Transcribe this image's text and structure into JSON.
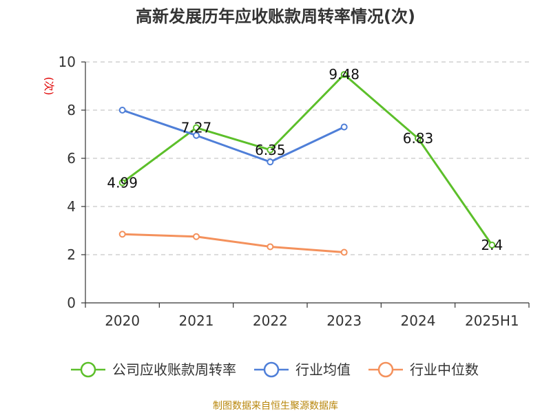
{
  "chart_data": {
    "type": "line",
    "title": "高新发展历年应收账款周转率情况(次)",
    "ylabel": "(次)",
    "ylim": [
      0,
      10
    ],
    "yticks": [
      0,
      2,
      4,
      6,
      8,
      10
    ],
    "categories": [
      "2020",
      "2021",
      "2022",
      "2023",
      "2024",
      "2025H1"
    ],
    "grid": true,
    "legend_position": "bottom",
    "series": [
      {
        "name": "公司应收账款周转率",
        "color": "#5cbf2a",
        "values": [
          4.99,
          7.27,
          6.35,
          9.48,
          6.83,
          2.4
        ],
        "labels": [
          "4.99",
          "7.27",
          "6.35",
          "9.48",
          "6.83",
          "2.4"
        ]
      },
      {
        "name": "行业均值",
        "color": "#4f7fd8",
        "values": [
          8.0,
          6.95,
          5.85,
          7.3,
          null,
          null
        ]
      },
      {
        "name": "行业中位数",
        "color": "#f4915c",
        "values": [
          2.85,
          2.75,
          2.33,
          2.1,
          null,
          null
        ]
      }
    ],
    "source": "制图数据来自恒生聚源数据库"
  }
}
